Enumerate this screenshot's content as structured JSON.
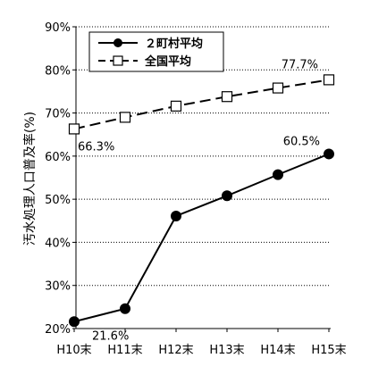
{
  "chart_data": {
    "type": "line",
    "title": "",
    "ylabel": "汚水処理人口普及率(%)",
    "xlabel": "",
    "categories": [
      "H10末",
      "H11末",
      "H12末",
      "H13末",
      "H14末",
      "H15末"
    ],
    "ylim": [
      20,
      90
    ],
    "yticks": [
      20,
      30,
      40,
      50,
      60,
      70,
      80,
      90
    ],
    "ytick_labels": [
      "20%",
      "30%",
      "40%",
      "50%",
      "60%",
      "70%",
      "80%",
      "90%"
    ],
    "grid": "horizontal-dotted",
    "legend_position": "top-left",
    "series": [
      {
        "name": "２町村平均",
        "values": [
          21.6,
          24.6,
          46.1,
          50.8,
          55.7,
          60.5
        ],
        "line_style": "solid",
        "marker": "filled-circle",
        "color": "#000000"
      },
      {
        "name": "全国平均",
        "values": [
          66.3,
          69.0,
          71.6,
          73.8,
          75.8,
          77.7
        ],
        "line_style": "dashed",
        "marker": "open-square",
        "color": "#000000"
      }
    ],
    "annotations": [
      {
        "text": "21.6%",
        "series": 0,
        "index": 0
      },
      {
        "text": "60.5%",
        "series": 0,
        "index": 5
      },
      {
        "text": "66.3%",
        "series": 1,
        "index": 0
      },
      {
        "text": "77.7%",
        "series": 1,
        "index": 5
      }
    ]
  }
}
